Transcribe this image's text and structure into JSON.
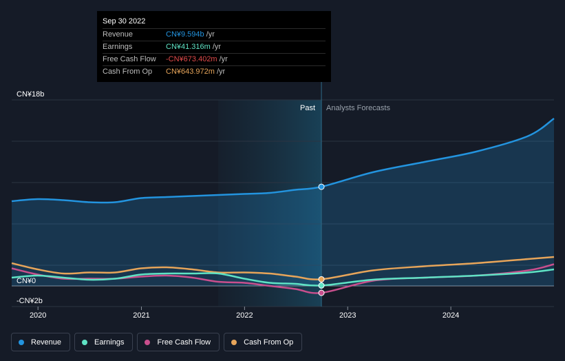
{
  "chart_data": {
    "type": "line",
    "y_unit": "CN¥ b /yr",
    "ylim": [
      -2,
      18
    ],
    "y_ticks": [
      {
        "value": 18,
        "label": "CN¥18b"
      },
      {
        "value": 0,
        "label": "CN¥0"
      },
      {
        "value": -2,
        "label": "-CN¥2b"
      }
    ],
    "x_ticks": [
      "2020",
      "2021",
      "2022",
      "2023",
      "2024"
    ],
    "xlim": [
      "2019-09-30",
      "2024-12-31"
    ],
    "divider_date": "2022-09-30",
    "past_label": "Past",
    "forecast_label": "Analysts Forecasts",
    "series": [
      {
        "name": "Revenue",
        "color": "#2394df",
        "area": true,
        "points": [
          [
            "2019-09-30",
            8.2
          ],
          [
            "2019-12-31",
            8.4
          ],
          [
            "2020-03-31",
            8.3
          ],
          [
            "2020-06-30",
            8.1
          ],
          [
            "2020-09-30",
            8.1
          ],
          [
            "2020-12-31",
            8.5
          ],
          [
            "2021-03-31",
            8.6
          ],
          [
            "2021-06-30",
            8.7
          ],
          [
            "2021-09-30",
            8.8
          ],
          [
            "2021-12-31",
            8.9
          ],
          [
            "2022-03-31",
            9.0
          ],
          [
            "2022-06-30",
            9.3
          ],
          [
            "2022-09-30",
            9.594
          ],
          [
            "2023-03-31",
            11.0
          ],
          [
            "2023-09-30",
            12.0
          ],
          [
            "2024-03-31",
            13.0
          ],
          [
            "2024-09-30",
            14.5
          ],
          [
            "2024-12-31",
            16.2
          ]
        ]
      },
      {
        "name": "Earnings",
        "color": "#5fe3c5",
        "area": false,
        "points": [
          [
            "2019-09-30",
            0.8
          ],
          [
            "2019-12-31",
            1.0
          ],
          [
            "2020-03-31",
            0.8
          ],
          [
            "2020-06-30",
            0.6
          ],
          [
            "2020-09-30",
            0.7
          ],
          [
            "2020-12-31",
            1.1
          ],
          [
            "2021-03-31",
            1.2
          ],
          [
            "2021-06-30",
            1.2
          ],
          [
            "2021-09-30",
            1.2
          ],
          [
            "2021-12-31",
            0.7
          ],
          [
            "2022-03-31",
            0.3
          ],
          [
            "2022-06-30",
            0.2
          ],
          [
            "2022-09-30",
            0.041
          ],
          [
            "2023-03-31",
            0.6
          ],
          [
            "2023-09-30",
            0.8
          ],
          [
            "2024-03-31",
            1.0
          ],
          [
            "2024-09-30",
            1.3
          ],
          [
            "2024-12-31",
            1.6
          ]
        ]
      },
      {
        "name": "Free Cash Flow",
        "color": "#c94f8d",
        "area": false,
        "points": [
          [
            "2019-09-30",
            1.7
          ],
          [
            "2019-12-31",
            1.1
          ],
          [
            "2020-03-31",
            0.7
          ],
          [
            "2020-06-30",
            0.7
          ],
          [
            "2020-09-30",
            0.7
          ],
          [
            "2020-12-31",
            0.9
          ],
          [
            "2021-03-31",
            1.0
          ],
          [
            "2021-06-30",
            0.8
          ],
          [
            "2021-09-30",
            0.4
          ],
          [
            "2021-12-31",
            0.3
          ],
          [
            "2022-03-31",
            0.0
          ],
          [
            "2022-06-30",
            -0.3
          ],
          [
            "2022-09-30",
            -0.673
          ],
          [
            "2023-03-31",
            0.5
          ],
          [
            "2023-09-30",
            0.8
          ],
          [
            "2024-03-31",
            1.0
          ],
          [
            "2024-09-30",
            1.5
          ],
          [
            "2024-12-31",
            2.1
          ]
        ]
      },
      {
        "name": "Cash From Op",
        "color": "#e7a55a",
        "area": false,
        "points": [
          [
            "2019-09-30",
            2.2
          ],
          [
            "2019-12-31",
            1.6
          ],
          [
            "2020-03-31",
            1.2
          ],
          [
            "2020-06-30",
            1.3
          ],
          [
            "2020-09-30",
            1.3
          ],
          [
            "2020-12-31",
            1.7
          ],
          [
            "2021-03-31",
            1.8
          ],
          [
            "2021-06-30",
            1.6
          ],
          [
            "2021-09-30",
            1.3
          ],
          [
            "2021-12-31",
            1.3
          ],
          [
            "2022-03-31",
            1.2
          ],
          [
            "2022-06-30",
            0.9
          ],
          [
            "2022-09-30",
            0.644
          ],
          [
            "2023-03-31",
            1.5
          ],
          [
            "2023-09-30",
            1.9
          ],
          [
            "2024-03-31",
            2.2
          ],
          [
            "2024-09-30",
            2.6
          ],
          [
            "2024-12-31",
            2.8
          ]
        ]
      }
    ]
  },
  "tooltip": {
    "date": "Sep 30 2022",
    "rows": [
      {
        "label": "Revenue",
        "value": "CN¥9.594b",
        "unit": "/yr",
        "color": "#2394df"
      },
      {
        "label": "Earnings",
        "value": "CN¥41.316m",
        "unit": "/yr",
        "color": "#5fe3c5"
      },
      {
        "label": "Free Cash Flow",
        "value": "-CN¥673.402m",
        "unit": "/yr",
        "color": "#e24b4b"
      },
      {
        "label": "Cash From Op",
        "value": "CN¥643.972m",
        "unit": "/yr",
        "color": "#e7a55a"
      }
    ]
  },
  "legend": [
    {
      "label": "Revenue",
      "color": "#2394df"
    },
    {
      "label": "Earnings",
      "color": "#5fe3c5"
    },
    {
      "label": "Free Cash Flow",
      "color": "#c94f8d"
    },
    {
      "label": "Cash From Op",
      "color": "#e7a55a"
    }
  ]
}
